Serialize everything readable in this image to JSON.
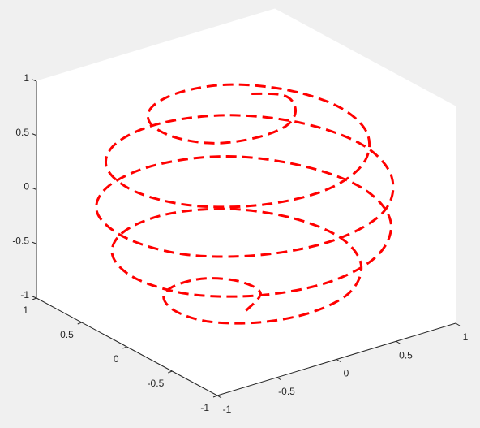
{
  "chart_data": {
    "type": "line3d",
    "series": [
      {
        "color": "#ff0000",
        "line_style": "dashed",
        "x": [
          0,
          0.22,
          0.18,
          0,
          -0.25,
          -0.48,
          -0.6,
          -0.56,
          -0.34,
          0,
          0.37,
          0.67,
          0.8,
          0.71,
          0.42,
          0,
          -0.44,
          -0.78,
          -0.92,
          -0.81,
          -0.47,
          0,
          0.48,
          0.84,
          0.98,
          0.85,
          0.5,
          0,
          -0.5,
          -0.87,
          -1,
          -0.87,
          -0.5,
          0,
          0.5,
          0.85,
          0.98,
          0.84,
          0.48,
          0,
          -0.47,
          -0.81,
          -0.92,
          -0.78,
          -0.44,
          0,
          0.42,
          0.71,
          0.8,
          0.67,
          0.37,
          0,
          -0.34,
          -0.56,
          -0.6,
          -0.48,
          -0.25,
          0,
          0.18,
          0.22,
          0
        ],
        "y": [
          0,
          0.13,
          0.31,
          0.44,
          0.43,
          0.28,
          0,
          -0.32,
          -0.59,
          -0.71,
          -0.65,
          -0.39,
          0,
          0.41,
          0.73,
          0.87,
          0.77,
          0.45,
          0,
          -0.47,
          -0.82,
          -0.95,
          -0.83,
          -0.49,
          0,
          0.49,
          0.86,
          0.99,
          0.86,
          0.5,
          0,
          -0.5,
          -0.86,
          -0.99,
          -0.86,
          -0.49,
          0,
          0.49,
          0.83,
          0.95,
          0.82,
          0.47,
          0,
          -0.45,
          -0.77,
          -0.87,
          -0.73,
          -0.41,
          0,
          0.39,
          0.65,
          0.71,
          0.59,
          0.32,
          0,
          -0.28,
          -0.43,
          -0.44,
          -0.31,
          -0.13,
          0
        ],
        "z": [
          -1,
          -0.97,
          -0.93,
          -0.9,
          -0.87,
          -0.83,
          -0.8,
          -0.77,
          -0.73,
          -0.7,
          -0.67,
          -0.63,
          -0.6,
          -0.57,
          -0.53,
          -0.5,
          -0.47,
          -0.43,
          -0.4,
          -0.37,
          -0.33,
          -0.3,
          -0.27,
          -0.23,
          -0.2,
          -0.17,
          -0.13,
          -0.1,
          -0.07,
          -0.03,
          0,
          0.03,
          0.07,
          0.1,
          0.13,
          0.17,
          0.2,
          0.23,
          0.27,
          0.3,
          0.33,
          0.37,
          0.4,
          0.43,
          0.47,
          0.5,
          0.53,
          0.57,
          0.6,
          0.63,
          0.67,
          0.7,
          0.73,
          0.77,
          0.8,
          0.83,
          0.87,
          0.9,
          0.93,
          0.97,
          1
        ]
      }
    ],
    "xlim": [
      -1,
      1
    ],
    "ylim": [
      -1,
      1
    ],
    "zlim": [
      -1,
      1
    ],
    "xticks": [
      -1,
      -0.5,
      0,
      0.5,
      1
    ],
    "yticks": [
      -1,
      -0.5,
      0,
      0.5,
      1
    ],
    "zticks": [
      -1,
      -0.5,
      0,
      0.5,
      1
    ]
  }
}
